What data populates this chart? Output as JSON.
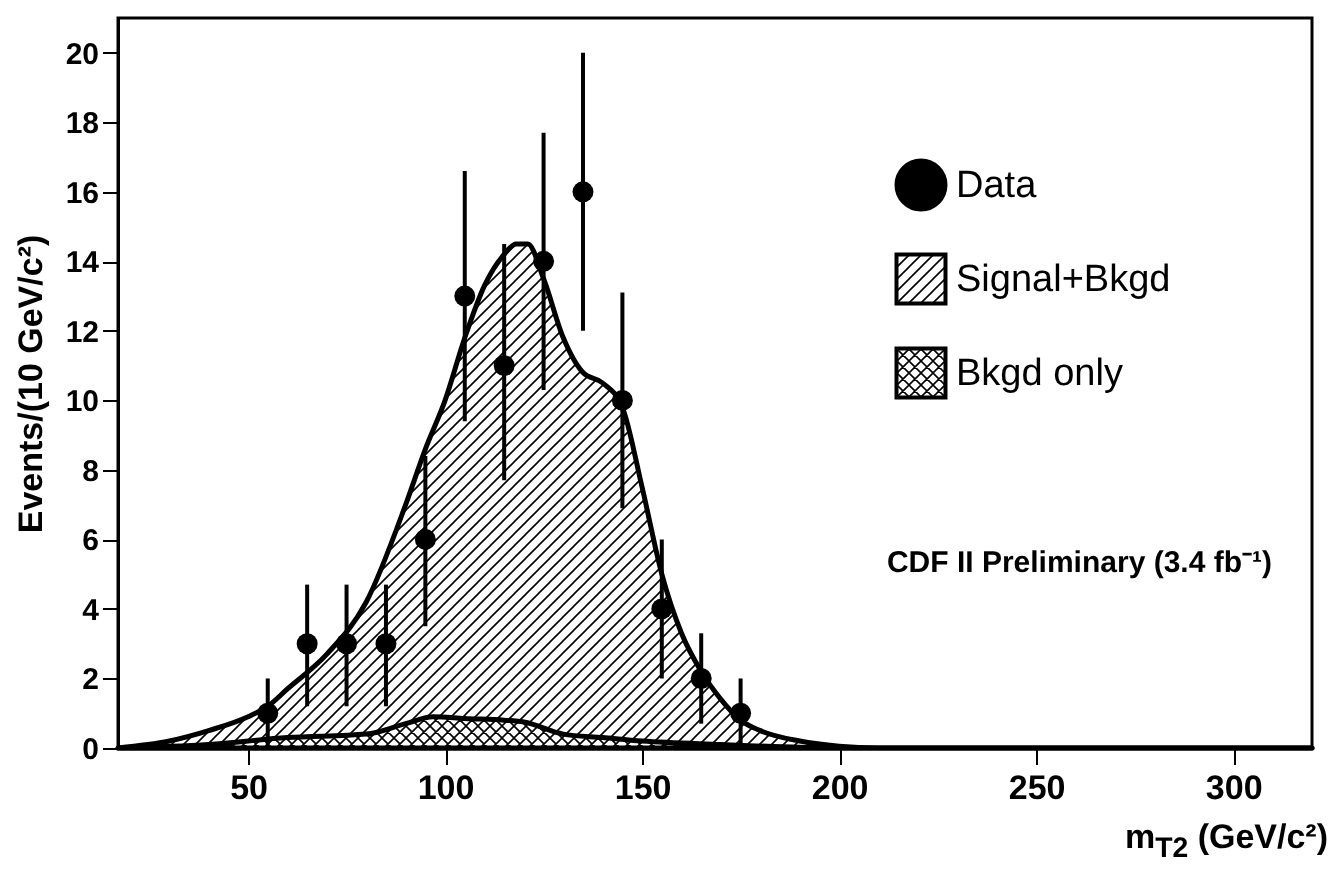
{
  "chart_data": {
    "type": "area",
    "xlabel": "m$_{T2}$ (GeV/c²)",
    "ylabel": "Events/(10 GeV/c²)",
    "annotations": [
      "CDF II Preliminary (3.4 fb⁻¹)"
    ],
    "xlim": [
      17,
      320
    ],
    "ylim": [
      0,
      21
    ],
    "xticks": [
      50,
      100,
      150,
      200,
      250,
      300
    ],
    "yticks": [
      0,
      2,
      4,
      6,
      8,
      10,
      12,
      14,
      16,
      18,
      20
    ],
    "legend": "top right",
    "grid": false,
    "series": [
      {
        "name": "Signal+Bkgd",
        "color": "#000000",
        "x": [
          17,
          30,
          40,
          50,
          55,
          60,
          70,
          80,
          90,
          95,
          100,
          105,
          110,
          115,
          118,
          121,
          125,
          130,
          135,
          140,
          145,
          150,
          155,
          160,
          165,
          170,
          175,
          180,
          190,
          200,
          210,
          320
        ],
        "values": [
          0,
          0.2,
          0.5,
          0.9,
          1.2,
          1.7,
          2.7,
          4.2,
          7,
          8.6,
          10,
          11.8,
          13.3,
          14.2,
          14.5,
          14.5,
          13.5,
          11.8,
          10.8,
          10.5,
          9.8,
          7.5,
          5,
          3.3,
          2.2,
          1.4,
          0.8,
          0.5,
          0.2,
          0.05,
          0,
          0
        ]
      },
      {
        "name": "Bkgd only",
        "color": "#000000",
        "x": [
          17,
          40,
          60,
          80,
          90,
          97,
          105,
          115,
          120,
          130,
          140,
          150,
          170,
          190,
          200,
          320
        ],
        "values": [
          0,
          0.1,
          0.3,
          0.4,
          0.7,
          0.9,
          0.85,
          0.8,
          0.75,
          0.4,
          0.3,
          0.2,
          0.1,
          0.02,
          0,
          0
        ]
      },
      {
        "name": "Data",
        "type": "scatter",
        "marker": "circle",
        "color": "#000000",
        "x": [
          55,
          65,
          75,
          85,
          95,
          105,
          115,
          125,
          135,
          145,
          155,
          165,
          175
        ],
        "values": [
          1,
          3,
          3,
          3,
          6,
          13,
          11,
          14,
          16,
          10,
          4,
          2,
          1
        ],
        "errors": [
          [
            0,
            2
          ],
          [
            1.2,
            4.7
          ],
          [
            1.2,
            4.7
          ],
          [
            1.2,
            4.7
          ],
          [
            3.5,
            8.4
          ],
          [
            9.4,
            16.6
          ],
          [
            7.7,
            14.5
          ],
          [
            10.3,
            17.7
          ],
          [
            12,
            20
          ],
          [
            6.9,
            13.1
          ],
          [
            2,
            6
          ],
          [
            0.7,
            3.3
          ],
          [
            0,
            2
          ]
        ]
      }
    ]
  }
}
